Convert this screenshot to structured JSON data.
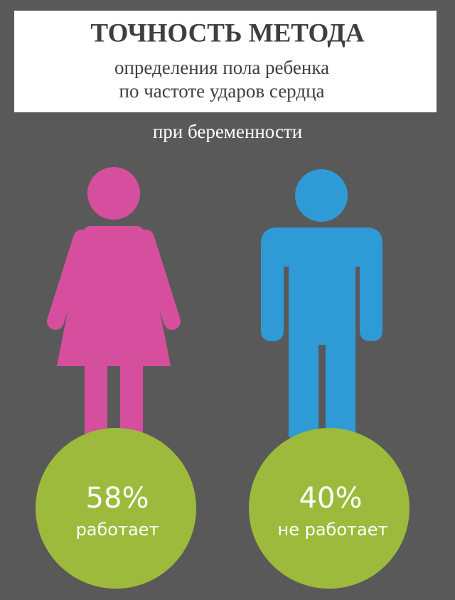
{
  "header": {
    "title": "ТОЧНОСТЬ МЕТОДА",
    "subtitle_lines": [
      "определения пола ребенка",
      "по частоте ударов сердца"
    ]
  },
  "caption": "при беременности",
  "stats": [
    {
      "figure": "female",
      "value_label": "58%",
      "text": "работает"
    },
    {
      "figure": "male",
      "value_label": "40%",
      "text": "не работает"
    }
  ]
}
